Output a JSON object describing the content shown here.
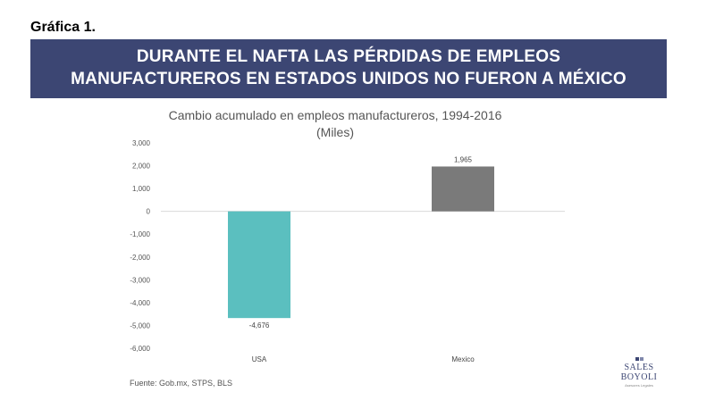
{
  "figure_label": "Gráfica 1.",
  "banner": {
    "line1": "DURANTE EL NAFTA LAS PÉRDIDAS DE EMPLEOS",
    "line2": "MANUFACTUREROS EN ESTADOS UNIDOS NO FUERON A MÉXICO"
  },
  "source": "Fuente: Gob.mx, STPS, BLS",
  "logo": {
    "name": "SALES BOYOLI",
    "tagline": "Asesores Legales"
  },
  "colors": {
    "banner": "#3c4673",
    "usa_bar": "#5bbfbf",
    "mexico_bar": "#7a7a7a"
  },
  "chart_data": {
    "type": "bar",
    "title": "Cambio acumulado en empleos manufactureros, 1994-2016",
    "subtitle": "(Miles)",
    "categories": [
      "USA",
      "Mexico"
    ],
    "values": [
      -4676,
      1965
    ],
    "value_labels": [
      "-4,676",
      "1,965"
    ],
    "ylim": [
      -6000,
      3000
    ],
    "yticks": [
      3000,
      2000,
      1000,
      0,
      -1000,
      -2000,
      -3000,
      -4000,
      -5000,
      -6000
    ],
    "ytick_labels": [
      "3,000",
      "2,000",
      "1,000",
      "0",
      "-1,000",
      "-2,000",
      "-3,000",
      "-4,000",
      "-5,000",
      "-6,000"
    ],
    "grid": false,
    "legend": "none"
  }
}
